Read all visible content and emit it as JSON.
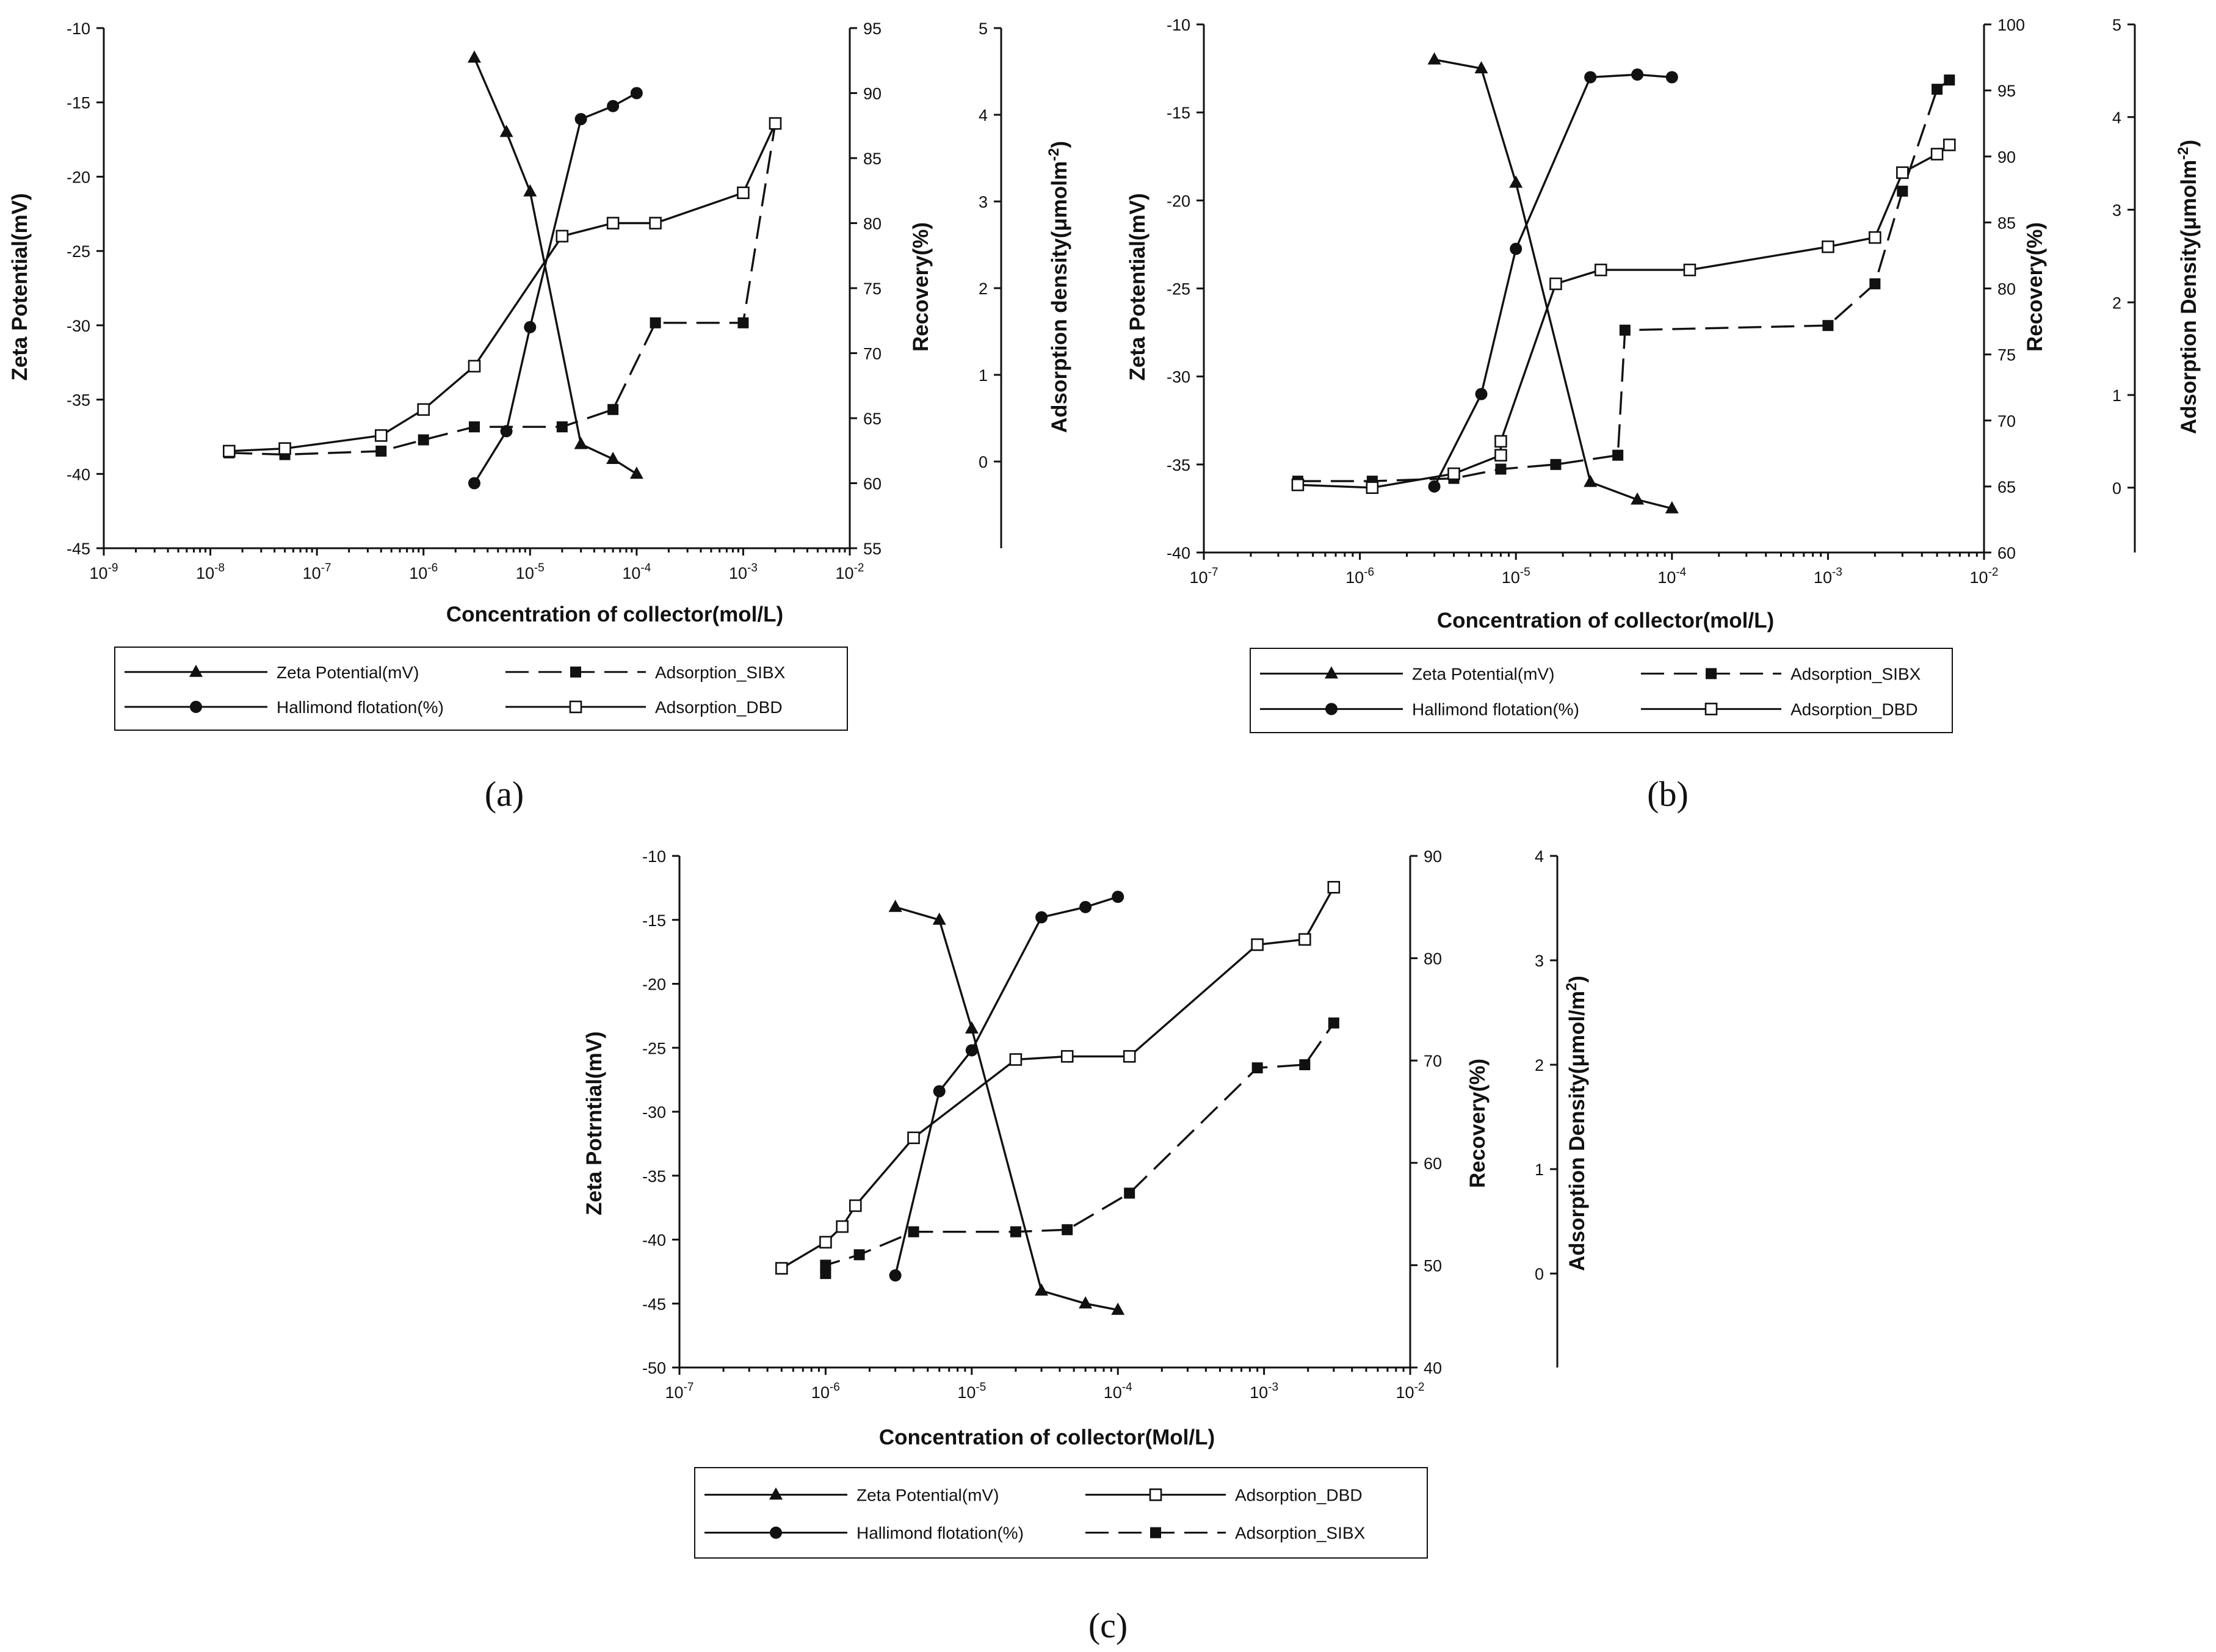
{
  "chart_data": [
    {
      "type": "line",
      "panel": "(a)",
      "xlabel": "Concentration of collector(mol/L)",
      "x_scale": "log",
      "x_ticks": [
        "-9",
        "-8",
        "-7",
        "-6",
        "-5",
        "-4",
        "-3",
        "-2"
      ],
      "xlim_exp": [
        -9,
        -2
      ],
      "left_axis": {
        "label": "Zeta Potential(mV)",
        "range": [
          -45,
          -10
        ],
        "step": 5
      },
      "recovery_axis": {
        "label": "Recovery(%)",
        "range": [
          55,
          95
        ],
        "step": 5
      },
      "adsorption_axis": {
        "label_main": "Adsorption density(μmolm",
        "label_sup": "-2",
        "label_end": ")",
        "range": [
          -1,
          5
        ],
        "tick_range": [
          0,
          5
        ],
        "step": 1
      },
      "legend": {
        "col1": [
          {
            "series": "zeta",
            "label": "Zeta Potential(mV)"
          },
          {
            "series": "hallimond",
            "label": "Hallimond flotation(%)"
          }
        ],
        "col2": [
          {
            "series": "sibx",
            "label": "Adsorption_SIBX"
          },
          {
            "series": "dbd",
            "label": "Adsorption_DBD"
          }
        ]
      },
      "series": [
        {
          "key": "zeta",
          "name": "Zeta Potential(mV)",
          "axis": "left",
          "marker": "triangle",
          "dash": false,
          "x": [
            3e-06,
            6e-06,
            1e-05,
            3e-05,
            6e-05,
            0.0001
          ],
          "y": [
            -12,
            -17,
            -21,
            -38,
            -39,
            -40
          ]
        },
        {
          "key": "hallimond",
          "name": "Hallimond flotation(%)",
          "axis": "recovery",
          "marker": "circle",
          "dash": false,
          "x": [
            3e-06,
            6e-06,
            1e-05,
            3e-05,
            6e-05,
            0.0001
          ],
          "y": [
            60,
            64,
            72,
            88,
            89,
            90
          ]
        },
        {
          "key": "sibx",
          "name": "Adsorption_SIBX",
          "axis": "adsorption",
          "marker": "filled-square",
          "dash": true,
          "x": [
            1.5e-08,
            5e-08,
            4e-07,
            1e-06,
            3e-06,
            2e-05,
            6e-05,
            0.00015,
            0.001,
            0.002
          ],
          "y": [
            0.1,
            0.08,
            0.12,
            0.25,
            0.4,
            0.4,
            0.6,
            1.6,
            1.6,
            3.9
          ]
        },
        {
          "key": "dbd",
          "name": "Adsorption_DBD",
          "axis": "adsorption",
          "marker": "open-square",
          "dash": false,
          "x": [
            1.5e-08,
            5e-08,
            4e-07,
            1e-06,
            3e-06,
            2e-05,
            6e-05,
            0.00015,
            0.001,
            0.002
          ],
          "y": [
            0.12,
            0.15,
            0.3,
            0.6,
            1.1,
            2.6,
            2.75,
            2.75,
            3.1,
            3.9
          ]
        }
      ]
    },
    {
      "type": "line",
      "panel": "(b)",
      "xlabel": "Concentration of collector(mol/L)",
      "x_scale": "log",
      "x_ticks": [
        "-7",
        "-6",
        "-5",
        "-4",
        "-3",
        "-2"
      ],
      "xlim_exp": [
        -7,
        -2
      ],
      "left_axis": {
        "label": "Zeta Potential(mV)",
        "range": [
          -40,
          -10
        ],
        "step": 5
      },
      "recovery_axis": {
        "label": "Recovery(%)",
        "range": [
          60,
          100
        ],
        "step": 5
      },
      "adsorption_axis": {
        "label_main": "Adsorption Density(μmolm",
        "label_sup": "-2",
        "label_end": ")",
        "range": [
          -0.7,
          5
        ],
        "tick_range": [
          0,
          5
        ],
        "step": 1
      },
      "legend": {
        "col1": [
          {
            "series": "zeta",
            "label": "Zeta Potential(mV)"
          },
          {
            "series": "hallimond",
            "label": "Hallimond flotation(%)"
          }
        ],
        "col2": [
          {
            "series": "sibx",
            "label": "Adsorption_SIBX"
          },
          {
            "series": "dbd",
            "label": "Adsorption_DBD"
          }
        ]
      },
      "series": [
        {
          "key": "zeta",
          "name": "Zeta Potential(mV)",
          "axis": "left",
          "marker": "triangle",
          "dash": false,
          "x": [
            3e-06,
            6e-06,
            1e-05,
            3e-05,
            6e-05,
            0.0001
          ],
          "y": [
            -12,
            -12.5,
            -19,
            -36,
            -37,
            -37.5
          ]
        },
        {
          "key": "hallimond",
          "name": "Hallimond flotation(%)",
          "axis": "recovery",
          "marker": "circle",
          "dash": false,
          "x": [
            3e-06,
            6e-06,
            1e-05,
            3e-05,
            6e-05,
            0.0001
          ],
          "y": [
            65,
            72,
            83,
            96,
            96.2,
            96
          ]
        },
        {
          "key": "sibx",
          "name": "Adsorption_SIBX",
          "axis": "adsorption",
          "marker": "filled-square",
          "dash": true,
          "x": [
            4e-07,
            1.2e-06,
            4e-06,
            8e-06,
            1.8e-05,
            4.5e-05,
            5e-05,
            0.001,
            0.002,
            0.003,
            0.005,
            0.006
          ],
          "y": [
            0.07,
            0.07,
            0.1,
            0.2,
            0.25,
            0.35,
            1.7,
            1.75,
            2.2,
            3.2,
            4.3,
            4.4
          ]
        },
        {
          "key": "dbd",
          "name": "Adsorption_DBD",
          "axis": "adsorption",
          "marker": "open-square",
          "dash": false,
          "x": [
            4e-07,
            1.2e-06,
            4e-06,
            8e-06,
            8e-06,
            1.8e-05,
            3.5e-05,
            0.00013,
            0.001,
            0.002,
            0.003,
            0.005,
            0.006
          ],
          "y": [
            0.03,
            0.0,
            0.15,
            0.35,
            0.5,
            2.2,
            2.35,
            2.35,
            2.6,
            2.7,
            3.4,
            3.6,
            3.7
          ]
        }
      ]
    },
    {
      "type": "line",
      "panel": "(c)",
      "xlabel": "Concentration of collector(Mol/L)",
      "x_scale": "log",
      "x_ticks": [
        "-7",
        "-6",
        "-5",
        "-4",
        "-3",
        "-2"
      ],
      "xlim_exp": [
        -7,
        -2
      ],
      "left_axis": {
        "label": "Zeta Potrntial(mV)",
        "range": [
          -50,
          -10
        ],
        "step": 5
      },
      "recovery_axis": {
        "label": "Recovery(%)",
        "range": [
          40,
          90
        ],
        "step": 10
      },
      "adsorption_axis": {
        "label_main": "Adsorption Density(μmol/m",
        "label_sup": "2",
        "label_end": ")",
        "range": [
          -0.9,
          4
        ],
        "tick_range": [
          0,
          4
        ],
        "step": 1
      },
      "legend": {
        "col1": [
          {
            "series": "zeta",
            "label": "Zeta Potential(mV)"
          },
          {
            "series": "hallimond",
            "label": "Hallimond flotation(%)"
          }
        ],
        "col2": [
          {
            "series": "dbd",
            "label": "Adsorption_DBD"
          },
          {
            "series": "sibx",
            "label": "Adsorption_SIBX"
          }
        ]
      },
      "series": [
        {
          "key": "zeta",
          "name": "Zeta Potential(mV)",
          "axis": "left",
          "marker": "triangle",
          "dash": false,
          "x": [
            3e-06,
            6e-06,
            1e-05,
            3e-05,
            6e-05,
            0.0001
          ],
          "y": [
            -14,
            -15,
            -23.5,
            -44,
            -45,
            -45.5
          ]
        },
        {
          "key": "hallimond",
          "name": "Hallimond flotation(%)",
          "axis": "recovery",
          "marker": "circle",
          "dash": false,
          "x": [
            3e-06,
            6e-06,
            1e-05,
            3e-05,
            6e-05,
            0.0001
          ],
          "y": [
            49,
            67,
            71,
            84,
            85,
            86
          ]
        },
        {
          "key": "dbd",
          "name": "Adsorption_DBD",
          "axis": "adsorption",
          "marker": "open-square",
          "dash": false,
          "x": [
            5e-07,
            1e-06,
            1.3e-06,
            1.6e-06,
            4e-06,
            2e-05,
            4.5e-05,
            0.00012,
            0.0009,
            0.0019,
            0.003
          ],
          "y": [
            0.05,
            0.3,
            0.45,
            0.65,
            1.3,
            2.05,
            2.08,
            2.08,
            3.15,
            3.2,
            3.7
          ]
        },
        {
          "key": "sibx",
          "name": "Adsorption_SIBX",
          "axis": "adsorption",
          "marker": "filled-square",
          "dash": true,
          "x": [
            1e-06,
            1e-06,
            1.7e-06,
            4e-06,
            2e-05,
            4.5e-05,
            0.00012,
            0.0009,
            0.0019,
            0.003
          ],
          "y": [
            0.0,
            0.08,
            0.18,
            0.4,
            0.4,
            0.42,
            0.77,
            1.97,
            2.0,
            2.4
          ]
        }
      ]
    }
  ],
  "panel_labels": [
    "(a)",
    "(b)",
    "(c)"
  ]
}
